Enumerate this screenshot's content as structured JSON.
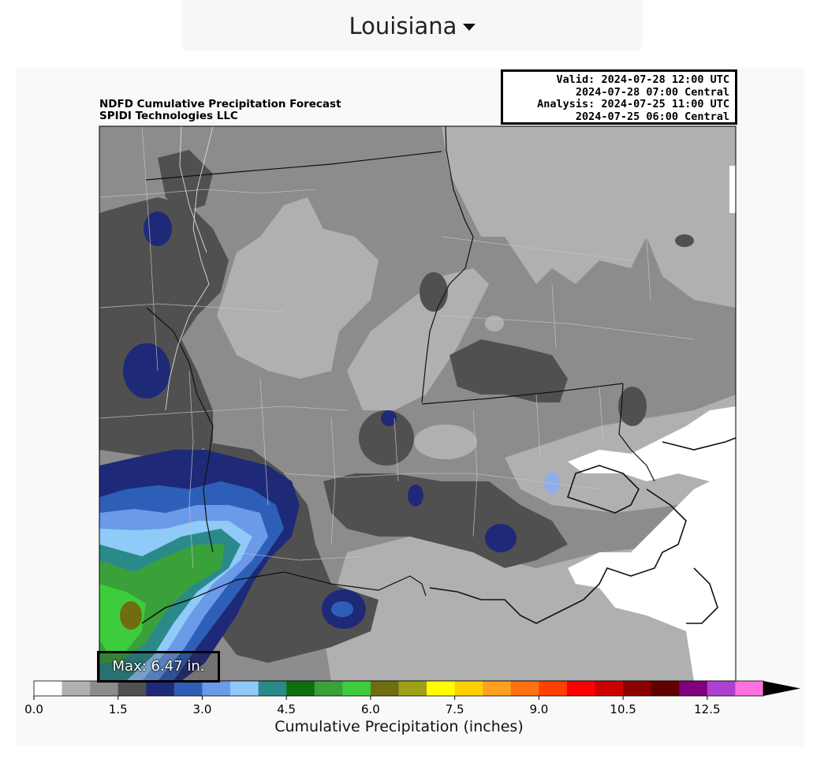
{
  "header": {
    "region_label": "Louisiana"
  },
  "figure": {
    "title_line1": "NDFD Cumulative Precipitation Forecast",
    "title_line2": "SPIDI Technologies LLC",
    "valid_lines": [
      "Valid: 2024-07-28 12:00 UTC",
      "2024-07-28 07:00 Central",
      "Analysis: 2024-07-25 11:00 UTC",
      "2024-07-25 06:00 Central"
    ],
    "max_label": "Max: 6.47 in."
  },
  "colorbar": {
    "label": "Cumulative Precipitation (inches)",
    "ticks": [
      "0.0",
      "1.5",
      "3.0",
      "4.5",
      "6.0",
      "7.5",
      "9.0",
      "10.5",
      "12.5"
    ],
    "colors": [
      "#ffffff",
      "#b0b0b0",
      "#8c8c8c",
      "#505050",
      "#1e2a78",
      "#2e5fb8",
      "#6a9ae8",
      "#8fcaf8",
      "#2a8a8a",
      "#0f6e0f",
      "#3aa03a",
      "#3ccc3c",
      "#6e6e10",
      "#a0a018",
      "#ffff00",
      "#ffd000",
      "#ffa020",
      "#ff7010",
      "#ff4000",
      "#ff0000",
      "#cc0000",
      "#8c0000",
      "#600000",
      "#800080",
      "#b040d0",
      "#ff70e0"
    ]
  },
  "map_colors": {
    "light": "#b0b0b0",
    "mid": "#8c8c8c",
    "dark": "#505050",
    "navy": "#1e2a78",
    "blue": "#2e5fb8",
    "cornflower": "#6a9ae8",
    "sky": "#8fcaf8",
    "teal": "#2a8a8a",
    "green": "#3aa03a",
    "lime": "#3ccc3c",
    "olive": "#6e6e10"
  }
}
